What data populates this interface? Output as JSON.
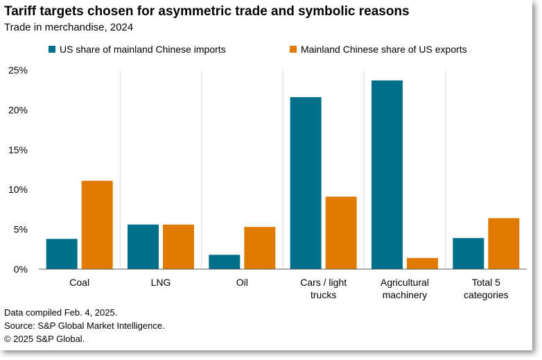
{
  "chart_data": {
    "type": "bar",
    "title": "Tariff targets chosen for asymmetric trade and symbolic reasons",
    "subtitle": "Trade in merchandise, 2024",
    "categories": [
      [
        "Coal"
      ],
      [
        "LNG"
      ],
      [
        "Oil"
      ],
      [
        "Cars / light",
        "trucks"
      ],
      [
        "Agricultural",
        "machinery"
      ],
      [
        "Total 5",
        "categories"
      ]
    ],
    "series": [
      {
        "name": "US share of mainland Chinese imports",
        "color": "#006f8a",
        "values": [
          3.8,
          5.6,
          1.8,
          21.6,
          23.7,
          3.9
        ]
      },
      {
        "name": "Mainland Chinese share of US exports",
        "color": "#e07b00",
        "values": [
          11.1,
          5.6,
          5.3,
          9.1,
          1.4,
          6.4
        ]
      }
    ],
    "ylim": [
      0,
      25
    ],
    "yticks": [
      "0%",
      "5%",
      "10%",
      "15%",
      "20%",
      "25%"
    ],
    "ytick_values": [
      0,
      5,
      10,
      15,
      20,
      25
    ],
    "xlabel": "",
    "ylabel": "",
    "legend_position": "top",
    "grid": "vertical category separators"
  },
  "footer": {
    "line1": "Data compiled Feb. 4, 2025.",
    "line2": "Source: S&P Global Market Intelligence.",
    "line3": "© 2025 S&P Global."
  }
}
